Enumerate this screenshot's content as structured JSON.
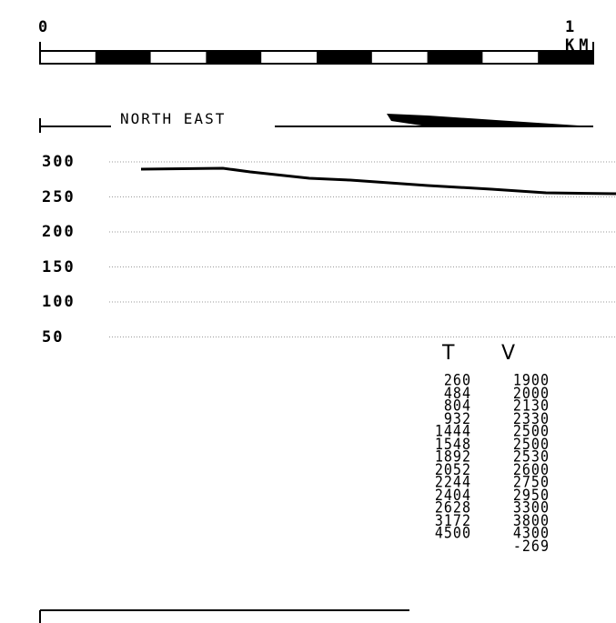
{
  "scale_bar": {
    "start_label": "0",
    "end_label": "1 KM",
    "segments": 10
  },
  "profile": {
    "direction_label": "NORTH EAST",
    "y_axis_ticks": [
      "300",
      "250",
      "200",
      "150",
      "100",
      "50"
    ],
    "line_color": "#000000",
    "grid_color": "#999999"
  },
  "table": {
    "headers": {
      "t": "T",
      "v": "V"
    },
    "t_values": [
      "260",
      "484",
      "804",
      "932",
      "1444",
      "1548",
      "1892",
      "2052",
      "2244",
      "2404",
      "2628",
      "3172",
      "4500"
    ],
    "v_values": [
      "1900",
      "2000",
      "2130",
      "2330",
      "2500",
      "2500",
      "2530",
      "2600",
      "2750",
      "2950",
      "3300",
      "3800",
      "4300",
      "-269"
    ]
  }
}
